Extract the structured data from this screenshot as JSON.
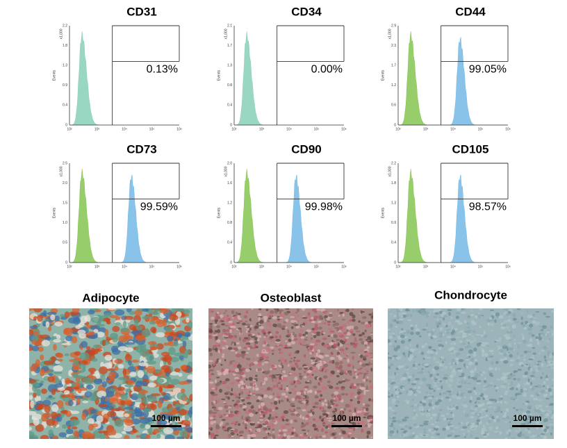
{
  "panels": [
    {
      "title": "CD31",
      "percent": "0.13%",
      "y_label": "Events",
      "y_multiplier": "x1,000",
      "yticks": [
        "0",
        "0.4",
        "0.9",
        "1.3",
        "1.8",
        "2.2"
      ],
      "xticks": [
        "10²",
        "10³",
        "10⁴",
        "10⁵",
        "10⁶"
      ],
      "positive": false,
      "negative_color": "#8fd3bd"
    },
    {
      "title": "CD34",
      "percent": "0.00%",
      "y_label": "Events",
      "y_multiplier": "x1,000",
      "yticks": [
        "0",
        "0.4",
        "0.8",
        "1.3",
        "1.7",
        "2.1"
      ],
      "xticks": [
        "10²",
        "10³",
        "10⁴",
        "10⁵",
        "10⁶"
      ],
      "positive": false,
      "negative_color": "#8fd3bd"
    },
    {
      "title": "CD44",
      "percent": "99.05%",
      "y_label": "Events",
      "y_multiplier": "x1,000",
      "yticks": [
        "0",
        "0.6",
        "1.2",
        "1.7",
        "2.3",
        "2.9"
      ],
      "xticks": [
        "10²",
        "10³",
        "10⁴",
        "10⁵",
        "10⁶"
      ],
      "positive": true,
      "negative_color": "#8cc85a"
    },
    {
      "title": "CD73",
      "percent": "99.59%",
      "y_label": "Events",
      "y_multiplier": "x1,000",
      "yticks": [
        "0",
        "0.5",
        "1.0",
        "1.5",
        "2.0",
        "2.5"
      ],
      "xticks": [
        "10²",
        "10³",
        "10⁴",
        "10⁵",
        "10⁶"
      ],
      "positive": true,
      "negative_color": "#8cc85a"
    },
    {
      "title": "CD90",
      "percent": "99.98%",
      "y_label": "Events",
      "y_multiplier": "x1,000",
      "yticks": [
        "0",
        "0.4",
        "0.8",
        "1.2",
        "1.6",
        "2.0"
      ],
      "xticks": [
        "10²",
        "10³",
        "10⁴",
        "10⁵",
        "10⁶"
      ],
      "positive": true,
      "negative_color": "#8cc85a"
    },
    {
      "title": "CD105",
      "percent": "98.57%",
      "y_label": "Events",
      "y_multiplier": "x1,000",
      "yticks": [
        "0",
        "0.4",
        "0.9",
        "1.3",
        "1.8",
        "2.2"
      ],
      "xticks": [
        "10²",
        "10³",
        "10⁴",
        "10⁵",
        "10⁶"
      ],
      "positive": true,
      "negative_color": "#8cc85a"
    }
  ],
  "images": [
    {
      "title": "Adipocyte",
      "scale_bar": "100 µm"
    },
    {
      "title": "Osteoblast",
      "scale_bar": "100 µm"
    },
    {
      "title": "Chondrocyte",
      "scale_bar": "100 µm"
    }
  ]
}
